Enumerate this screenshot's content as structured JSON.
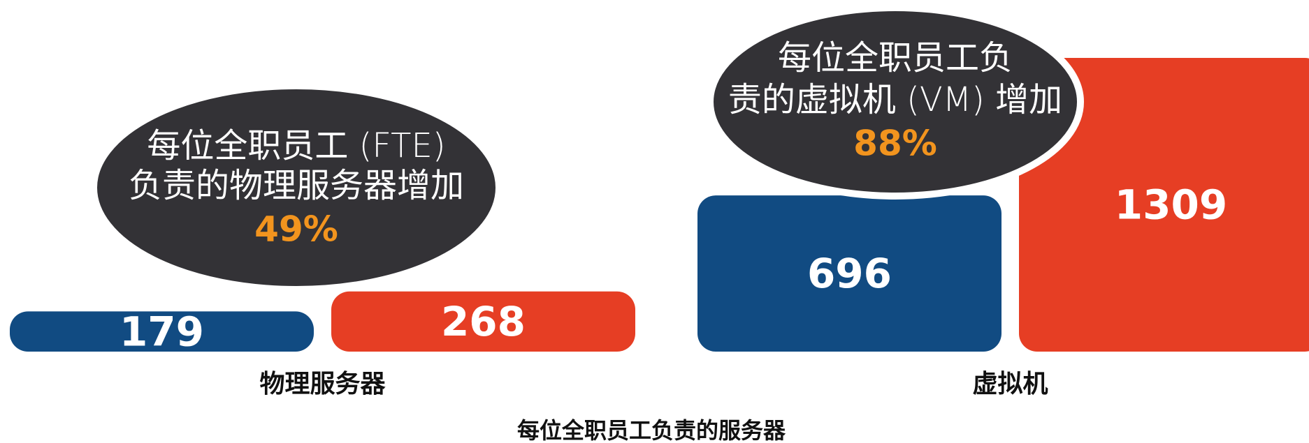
{
  "chart_data": {
    "type": "bar",
    "title": "每位全职员工负责的服务器",
    "categories": [
      "物理服务器",
      "虚拟机"
    ],
    "series": [
      {
        "color": "#114b82",
        "values": [
          179,
          696
        ]
      },
      {
        "color": "#e63e24",
        "values": [
          268,
          1309
        ]
      }
    ],
    "annotations": [
      {
        "lines": [
          "每位全职员工 (FTE)",
          "负责的物理服务器增加"
        ],
        "highlight": "49%"
      },
      {
        "lines": [
          "每位全职员工负",
          "责的虚拟机 (VM) 增加"
        ],
        "highlight": "88%"
      }
    ],
    "annotation_color": "#333236"
  }
}
